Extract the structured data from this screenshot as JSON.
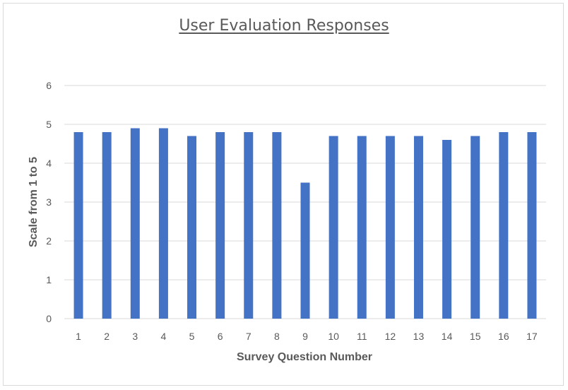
{
  "chart_data": {
    "type": "bar",
    "title": "User Evaluation Responses",
    "xlabel": "Survey Question Number",
    "ylabel": "Scale  from 1 to 5",
    "categories": [
      "1",
      "2",
      "3",
      "4",
      "5",
      "6",
      "7",
      "8",
      "9",
      "10",
      "11",
      "12",
      "13",
      "14",
      "15",
      "16",
      "17"
    ],
    "values": [
      4.8,
      4.8,
      4.9,
      4.9,
      4.7,
      4.8,
      4.8,
      4.8,
      3.5,
      4.7,
      4.7,
      4.7,
      4.7,
      4.6,
      4.7,
      4.8,
      4.8
    ],
    "ylim": [
      0,
      6
    ],
    "yticks": [
      0,
      1,
      2,
      3,
      4,
      5,
      6
    ],
    "grid": true,
    "legend": "none",
    "bar_color": "#4472c4",
    "grid_color": "#d9d9d9"
  }
}
